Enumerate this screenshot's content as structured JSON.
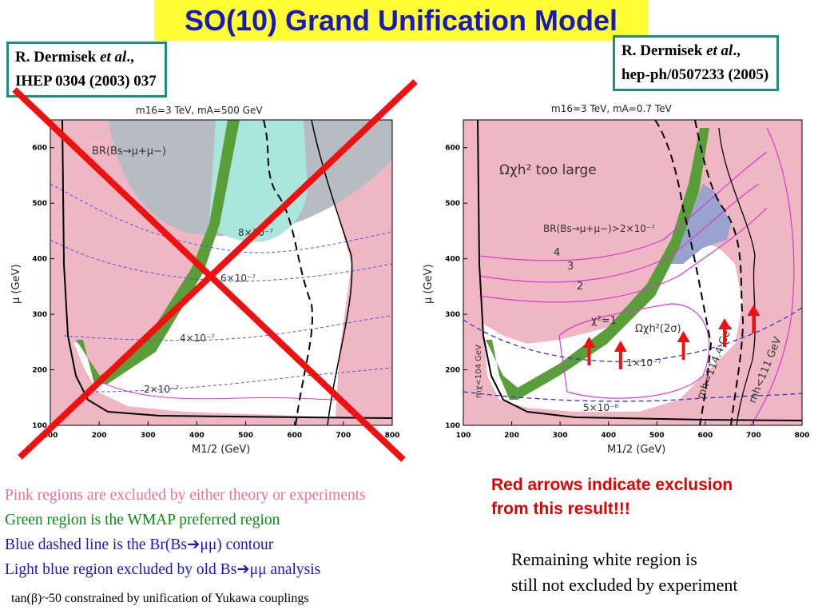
{
  "title": "SO(10) Grand Unification Model",
  "refs": [
    {
      "author": "R. Dermisek",
      "etal": "et al",
      "comma": ".,",
      "cite": "IHEP 0304 (2003) 037"
    },
    {
      "author": "R. Dermisek",
      "etal": "et al",
      "comma": ".,",
      "cite": "hep-ph/0507233 (2005)"
    }
  ],
  "colors": {
    "pink": "#efb6c3",
    "green": "#5a9e3a",
    "cyan": "#a9e6dc",
    "gray": "#b6bcc2",
    "blue": "#4a57e6",
    "magenta": "#d63ad0",
    "red": "#ee1111",
    "title_bg": "#ffff33"
  },
  "chart_data": [
    {
      "type": "area",
      "title": "m16=3 TeV, mA=500 GeV",
      "xlabel": "M1/2 (GeV)",
      "ylabel": "μ (GeV)",
      "xlim": [
        100,
        800
      ],
      "ylim": [
        100,
        650
      ],
      "xticks": [
        "100",
        "200",
        "300",
        "400",
        "500",
        "600",
        "700",
        "800"
      ],
      "yticks": [
        "100",
        "200",
        "300",
        "400",
        "500",
        "600"
      ],
      "annotations": [
        "BR(Bs→μ+μ−)",
        "8×10⁻⁷",
        "6×10⁻⁷",
        "4×10⁻⁷",
        "2×10⁻⁷"
      ],
      "crossed_out": true
    },
    {
      "type": "area",
      "title": "m16=3 TeV, mA=0.7 TeV",
      "xlabel": "M1/2 (GeV)",
      "ylabel": "μ (GeV)",
      "xlim": [
        100,
        800
      ],
      "ylim": [
        100,
        650
      ],
      "xticks": [
        "100",
        "200",
        "300",
        "400",
        "500",
        "600",
        "700",
        "800"
      ],
      "yticks": [
        "100",
        "200",
        "300",
        "400",
        "500",
        "600"
      ],
      "annotations": [
        "Ωχh² too large",
        "BR(Bs→μ+μ−)>2×10⁻⁷",
        "4",
        "3",
        "2",
        "χ²=1",
        "Ωχh²(2σ)",
        "1×10⁻⁷",
        "5×10⁻⁸",
        "mh=114.4 GeV",
        "mh<111 GeV",
        "mχ<104 GeV"
      ],
      "red_arrows_x": [
        360,
        425,
        555,
        640,
        700
      ]
    }
  ],
  "notes": {
    "pink": "Pink regions are excluded by either theory or experiments",
    "green": "Green region is the WMAP preferred region",
    "blue_pre": "Blue dashed line is the Br(Bs",
    "blue_post": "μμ) contour",
    "lightblue_pre": "Light blue region excluded by old Bs",
    "lightblue_post": "μμ analysis",
    "arrow": "➔"
  },
  "footer": "tan(β)~50 constrained by unification of Yukawa couplings",
  "red_note": [
    "Red arrows indicate exclusion",
    "from this result!!!"
  ],
  "white_note": [
    "Remaining white region is",
    "still not excluded by experiment"
  ]
}
